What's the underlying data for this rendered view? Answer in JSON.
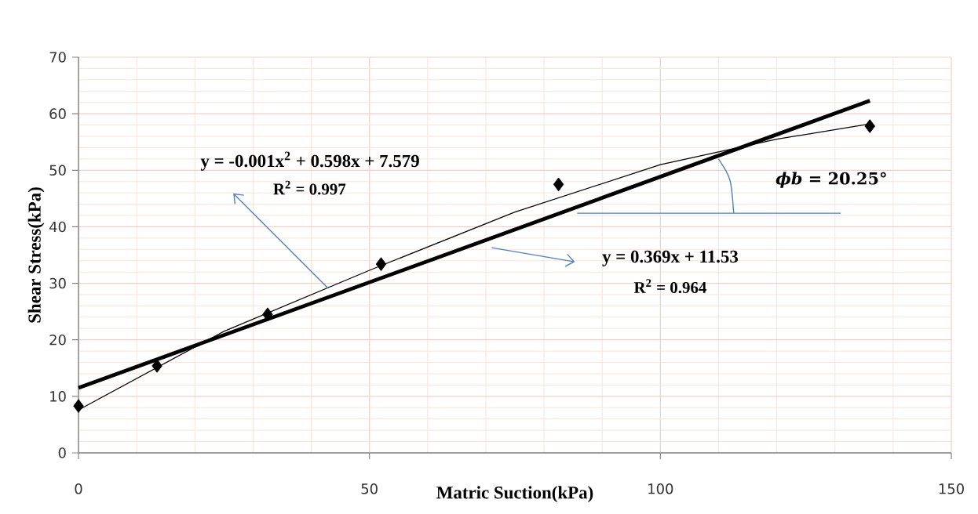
{
  "chart_data": {
    "type": "scatter",
    "xlabel": "Matric Suction(kPa)",
    "ylabel": "Shear Stress(kPa)",
    "xlim": [
      0,
      150
    ],
    "ylim": [
      0,
      70
    ],
    "xticks": [
      0,
      50,
      100,
      150
    ],
    "yticks": [
      0,
      10,
      20,
      30,
      40,
      50,
      60,
      70
    ],
    "grid": true,
    "series": [
      {
        "color": "#000000",
        "marker": "diamond",
        "x": [
          0,
          13.5,
          32.5,
          52,
          82.5,
          136
        ],
        "values": [
          8.3,
          15.4,
          24.5,
          33.4,
          47.5,
          57.8
        ]
      },
      {
        "type": "line",
        "line_style": "solid",
        "color": "#000000",
        "x": [
          0,
          25,
          50,
          75,
          100,
          120,
          136
        ],
        "values": [
          7.6,
          21.5,
          32.3,
          42.6,
          51.0,
          55.5,
          58.2
        ]
      },
      {
        "type": "line",
        "line_style": "solid",
        "color": "#000000",
        "x": [
          0,
          136
        ],
        "values": [
          11.5,
          62.3
        ]
      }
    ],
    "annotations": [
      "y = -0.001x$^{2}$ + 0.598x + 7.579",
      "R$^{2}$ = 0.997",
      "y = 0.369x + 11.53",
      "R$^{2}$ = 0.964",
      "*ϕb*  = 20.25°"
    ]
  }
}
